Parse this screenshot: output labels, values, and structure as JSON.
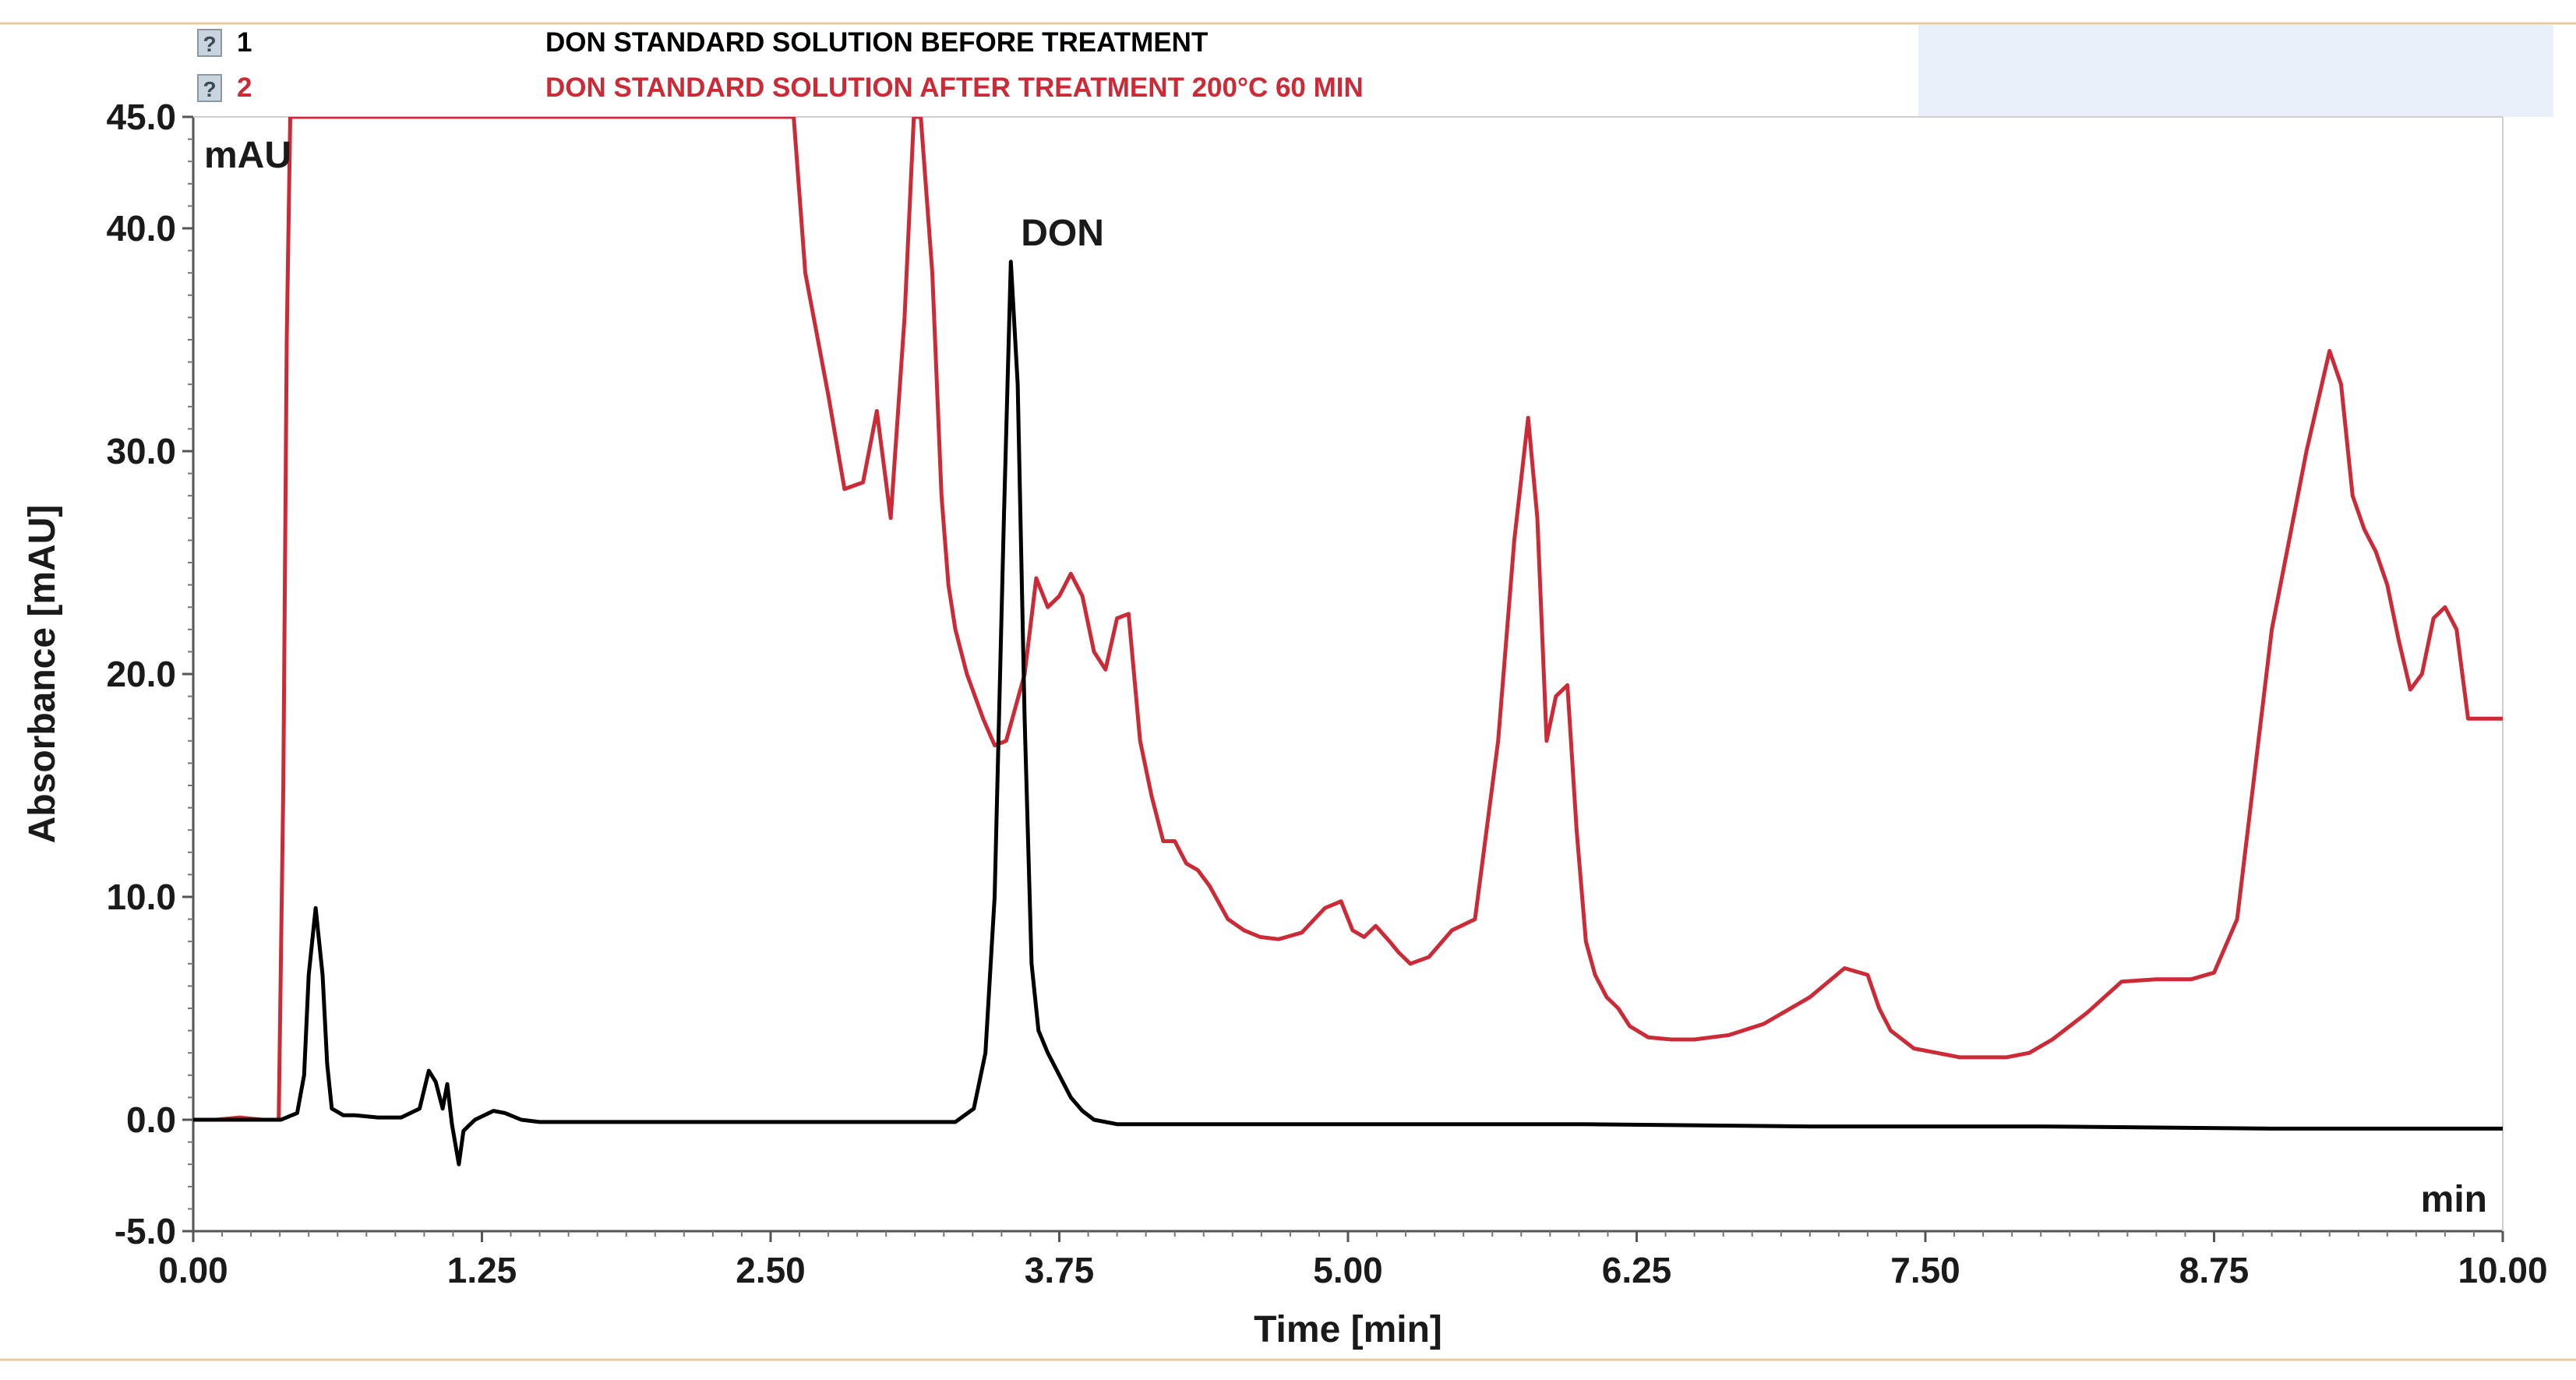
{
  "chart_data": {
    "type": "line",
    "xlabel": "Time [min]",
    "ylabel": "Absorbance [mAU]",
    "x_unit_label": "min",
    "y_unit_label": "mAU",
    "xlim": [
      0,
      10
    ],
    "ylim": [
      -5,
      45
    ],
    "x_ticks": [
      "0.00",
      "1.25",
      "2.50",
      "3.75",
      "5.00",
      "6.25",
      "7.50",
      "8.75",
      "10.00"
    ],
    "x_tick_values": [
      0,
      1.25,
      2.5,
      3.75,
      5.0,
      6.25,
      7.5,
      8.75,
      10.0
    ],
    "y_ticks": [
      "-5.0",
      "0.0",
      "10.0",
      "20.0",
      "30.0",
      "40.0",
      "45.0"
    ],
    "y_tick_values": [
      -5,
      0,
      10,
      20,
      30,
      40,
      45
    ],
    "grid": false,
    "legend_position": "top-left",
    "annotations": [
      {
        "text": "DON",
        "x": 3.55,
        "y": 38.9
      }
    ],
    "series": [
      {
        "id": "1",
        "name": "DON STANDARD SOLUTION BEFORE TREATMENT",
        "color": "#000000",
        "x": [
          0.0,
          0.25,
          0.38,
          0.45,
          0.48,
          0.5,
          0.53,
          0.56,
          0.58,
          0.6,
          0.65,
          0.7,
          0.8,
          0.9,
          0.98,
          1.02,
          1.05,
          1.08,
          1.1,
          1.12,
          1.15,
          1.17,
          1.19,
          1.22,
          1.3,
          1.35,
          1.42,
          1.5,
          1.6,
          2.0,
          2.5,
          3.0,
          3.3,
          3.38,
          3.43,
          3.47,
          3.51,
          3.54,
          3.57,
          3.6,
          3.63,
          3.66,
          3.7,
          3.75,
          3.8,
          3.85,
          3.9,
          4.0,
          4.2,
          5.0,
          6.0,
          7.0,
          8.0,
          9.0,
          10.0
        ],
        "y": [
          0.0,
          0.0,
          0.0,
          0.3,
          2.0,
          6.5,
          9.5,
          6.5,
          2.5,
          0.5,
          0.2,
          0.2,
          0.1,
          0.1,
          0.5,
          2.2,
          1.7,
          0.5,
          1.6,
          -0.2,
          -2.0,
          -0.5,
          -0.3,
          0.0,
          0.4,
          0.3,
          0.0,
          -0.1,
          -0.1,
          -0.1,
          -0.1,
          -0.1,
          -0.1,
          0.5,
          3.0,
          10.0,
          27.0,
          38.5,
          33.0,
          18.0,
          7.0,
          4.0,
          3.0,
          2.0,
          1.0,
          0.4,
          0.0,
          -0.2,
          -0.2,
          -0.2,
          -0.2,
          -0.3,
          -0.3,
          -0.4,
          -0.4
        ]
      },
      {
        "id": "2",
        "name": "DON STANDARD SOLUTION AFTER TREATMENT 200°C 60 MIN",
        "color": "#cc2a36",
        "x": [
          0.0,
          0.1,
          0.2,
          0.3,
          0.37,
          0.39,
          0.405,
          0.42,
          2.6,
          2.65,
          2.75,
          2.82,
          2.9,
          2.96,
          3.02,
          3.08,
          3.12,
          3.15,
          3.2,
          3.24,
          3.27,
          3.3,
          3.35,
          3.42,
          3.47,
          3.52,
          3.6,
          3.65,
          3.7,
          3.75,
          3.8,
          3.85,
          3.9,
          3.95,
          4.0,
          4.05,
          4.1,
          4.15,
          4.2,
          4.25,
          4.3,
          4.35,
          4.4,
          4.48,
          4.55,
          4.62,
          4.7,
          4.8,
          4.9,
          4.97,
          5.02,
          5.07,
          5.12,
          5.18,
          5.22,
          5.27,
          5.35,
          5.45,
          5.55,
          5.65,
          5.72,
          5.78,
          5.82,
          5.86,
          5.9,
          5.95,
          5.99,
          6.03,
          6.07,
          6.12,
          6.17,
          6.22,
          6.3,
          6.4,
          6.5,
          6.65,
          6.8,
          7.0,
          7.15,
          7.25,
          7.3,
          7.35,
          7.4,
          7.45,
          7.55,
          7.65,
          7.75,
          7.85,
          7.95,
          8.05,
          8.2,
          8.35,
          8.5,
          8.65,
          8.75,
          8.85,
          9.0,
          9.15,
          9.25,
          9.3,
          9.35,
          9.4,
          9.45,
          9.5,
          9.55,
          9.6,
          9.65,
          9.7,
          9.75,
          9.8,
          9.85,
          9.9,
          9.95,
          10.0
        ],
        "y": [
          0.0,
          0.0,
          0.1,
          0.0,
          0.0,
          15.0,
          35.0,
          45.0,
          45.0,
          38.0,
          32.5,
          28.3,
          28.6,
          31.8,
          27.0,
          36.0,
          45.0,
          45.0,
          38.0,
          28.0,
          24.0,
          22.0,
          20.0,
          18.0,
          16.8,
          17.0,
          20.0,
          24.3,
          23.0,
          23.5,
          24.5,
          23.5,
          21.0,
          20.2,
          22.5,
          22.7,
          17.0,
          14.5,
          12.5,
          12.5,
          11.5,
          11.2,
          10.5,
          9.0,
          8.5,
          8.2,
          8.1,
          8.4,
          9.5,
          9.8,
          8.5,
          8.2,
          8.7,
          8.0,
          7.5,
          7.0,
          7.3,
          8.5,
          9.0,
          17.0,
          26.0,
          31.5,
          27.0,
          17.0,
          19.0,
          19.5,
          13.0,
          8.0,
          6.5,
          5.5,
          5.0,
          4.2,
          3.7,
          3.6,
          3.6,
          3.8,
          4.3,
          5.5,
          6.8,
          6.5,
          5.0,
          4.0,
          3.6,
          3.2,
          3.0,
          2.8,
          2.8,
          2.8,
          3.0,
          3.6,
          4.8,
          6.2,
          6.3,
          6.3,
          6.6,
          9.0,
          22.0,
          30.0,
          34.5,
          33.0,
          28.0,
          26.5,
          25.5,
          24.0,
          21.5,
          19.3,
          20.0,
          22.5,
          23.0,
          22.0,
          18.0,
          18.0,
          18.0,
          18.0
        ]
      }
    ]
  }
}
